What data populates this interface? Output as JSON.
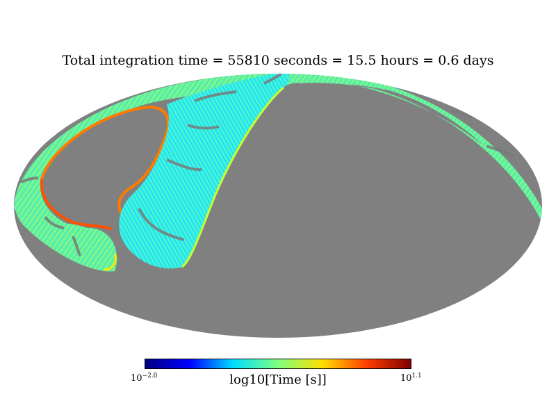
{
  "title": "Total integration time = 55810 seconds = 15.5 hours = 0.6 days",
  "projection": "mollweide",
  "colors": {
    "unobserved": "#808080",
    "colormap": [
      "#00007f",
      "#0000ff",
      "#00dfff",
      "#7fff7f",
      "#ffdf00",
      "#ff3f00",
      "#7f0000"
    ]
  },
  "colorbar": {
    "label": "log10[Time [s]]",
    "min": {
      "base": "10",
      "exponent": "−2.0"
    },
    "max": {
      "base": "10",
      "exponent": "1.1"
    }
  }
}
